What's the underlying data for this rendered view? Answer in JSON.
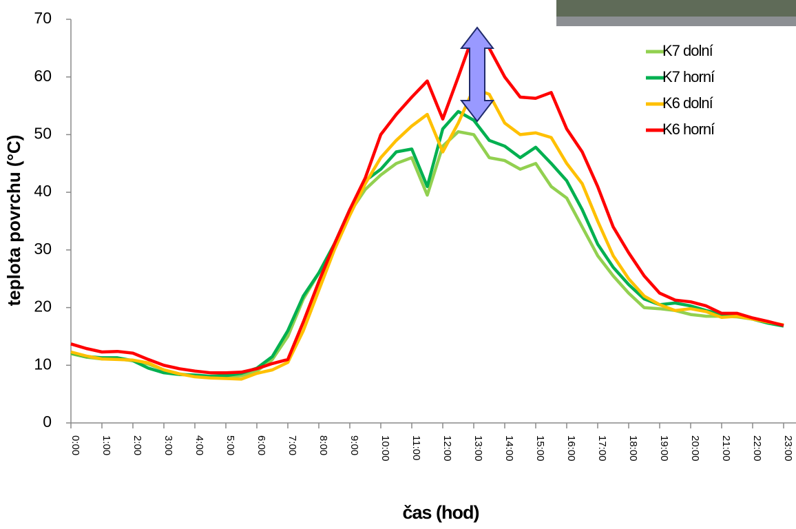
{
  "chart_data": {
    "type": "line",
    "y_label": "teplota povrchu (°C)",
    "x_label": "čas (hod)",
    "x": [
      0,
      0.5,
      1,
      1.5,
      2,
      2.5,
      3,
      3.5,
      4,
      4.5,
      5,
      5.5,
      6,
      6.5,
      7,
      7.5,
      8,
      8.5,
      9,
      9.5,
      10,
      10.5,
      11,
      11.5,
      12,
      12.5,
      13,
      13.5,
      14,
      14.5,
      15,
      15.5,
      16,
      16.5,
      17,
      17.5,
      18,
      18.5,
      19,
      19.5,
      20,
      20.5,
      21,
      21.5,
      22,
      22.5,
      23
    ],
    "series": [
      {
        "name": "K7 dolní",
        "color": "#92d050",
        "values": [
          12,
          11.4,
          11.1,
          11.1,
          10.8,
          10.2,
          9.2,
          8.5,
          8.2,
          8,
          8,
          8.2,
          9,
          11,
          15,
          21.5,
          26,
          31,
          36.5,
          40.5,
          43,
          45,
          46,
          39.5,
          48,
          50.5,
          50,
          46,
          45.5,
          44,
          45,
          41,
          39,
          34,
          29,
          25.5,
          22.5,
          20,
          19.8,
          19.5,
          18.8,
          18.5,
          18.5,
          18.4,
          18,
          17.4,
          16.9
        ]
      },
      {
        "name": "K7 horní",
        "color": "#00b050",
        "values": [
          12.2,
          11.5,
          11.3,
          11.3,
          10.8,
          9.5,
          8.7,
          8.4,
          8.3,
          8.1,
          8.2,
          8.6,
          9.5,
          11.5,
          16,
          22,
          26,
          31,
          37,
          42,
          44,
          47,
          47.5,
          41,
          51,
          54,
          52.5,
          49,
          48,
          46,
          47.8,
          45,
          42,
          37,
          31,
          27,
          24,
          21.5,
          20.5,
          20.8,
          20.3,
          19.5,
          18.8,
          18.5,
          18,
          17.3,
          16.8
        ]
      },
      {
        "name": "K6 dolní",
        "color": "#ffc000",
        "values": [
          12.3,
          11.6,
          11.1,
          11,
          10.9,
          10.4,
          9.2,
          8.5,
          8,
          7.8,
          7.7,
          7.6,
          8.6,
          9.2,
          10.5,
          16,
          23,
          30,
          36,
          41.5,
          46,
          49,
          51.5,
          53.5,
          47,
          52,
          58,
          57,
          52,
          50,
          50.3,
          49.5,
          45,
          41.5,
          35,
          29,
          25,
          22,
          20.5,
          19.5,
          19.8,
          19.3,
          18.3,
          18.5,
          18,
          17.5,
          17
        ]
      },
      {
        "name": "K6 horní",
        "color": "#ff0000",
        "values": [
          13.7,
          12.9,
          12.3,
          12.4,
          12.1,
          11,
          10,
          9.4,
          9,
          8.7,
          8.7,
          8.8,
          9.4,
          10.3,
          11,
          17.5,
          24.5,
          31,
          37,
          42.5,
          50,
          53.5,
          56.5,
          59.3,
          52.7,
          60,
          67.5,
          65,
          60,
          56.5,
          56.3,
          57.3,
          51,
          47,
          41,
          34,
          29.5,
          25.5,
          22.5,
          21.3,
          21,
          20.3,
          19,
          19,
          18.2,
          17.6,
          16.9
        ]
      }
    ],
    "xlim": [
      0,
      23.4
    ],
    "xticks": [
      {
        "value": 0,
        "label": "0:00"
      },
      {
        "value": 1,
        "label": "1:00"
      },
      {
        "value": 2,
        "label": "2:00"
      },
      {
        "value": 3,
        "label": "3:00"
      },
      {
        "value": 4,
        "label": "4:00"
      },
      {
        "value": 5,
        "label": "5:00"
      },
      {
        "value": 6,
        "label": "6:00"
      },
      {
        "value": 7,
        "label": "7:00"
      },
      {
        "value": 8,
        "label": "8:00"
      },
      {
        "value": 9,
        "label": "9:00"
      },
      {
        "value": 10,
        "label": "10:00"
      },
      {
        "value": 11,
        "label": "11:00"
      },
      {
        "value": 12,
        "label": "12:00"
      },
      {
        "value": 13,
        "label": "13:00"
      },
      {
        "value": 14,
        "label": "14:00"
      },
      {
        "value": 15,
        "label": "15:00"
      },
      {
        "value": 16,
        "label": "16:00"
      },
      {
        "value": 17,
        "label": "17:00"
      },
      {
        "value": 18,
        "label": "18:00"
      },
      {
        "value": 19,
        "label": "19:00"
      },
      {
        "value": 20,
        "label": "20:00"
      },
      {
        "value": 21,
        "label": "21:00"
      },
      {
        "value": 22,
        "label": "22:00"
      },
      {
        "value": 23,
        "label": "23:00"
      }
    ],
    "ylim": [
      0,
      70
    ],
    "yticks": [
      0,
      10,
      20,
      30,
      40,
      50,
      60,
      70
    ],
    "legend": "top-right"
  }
}
